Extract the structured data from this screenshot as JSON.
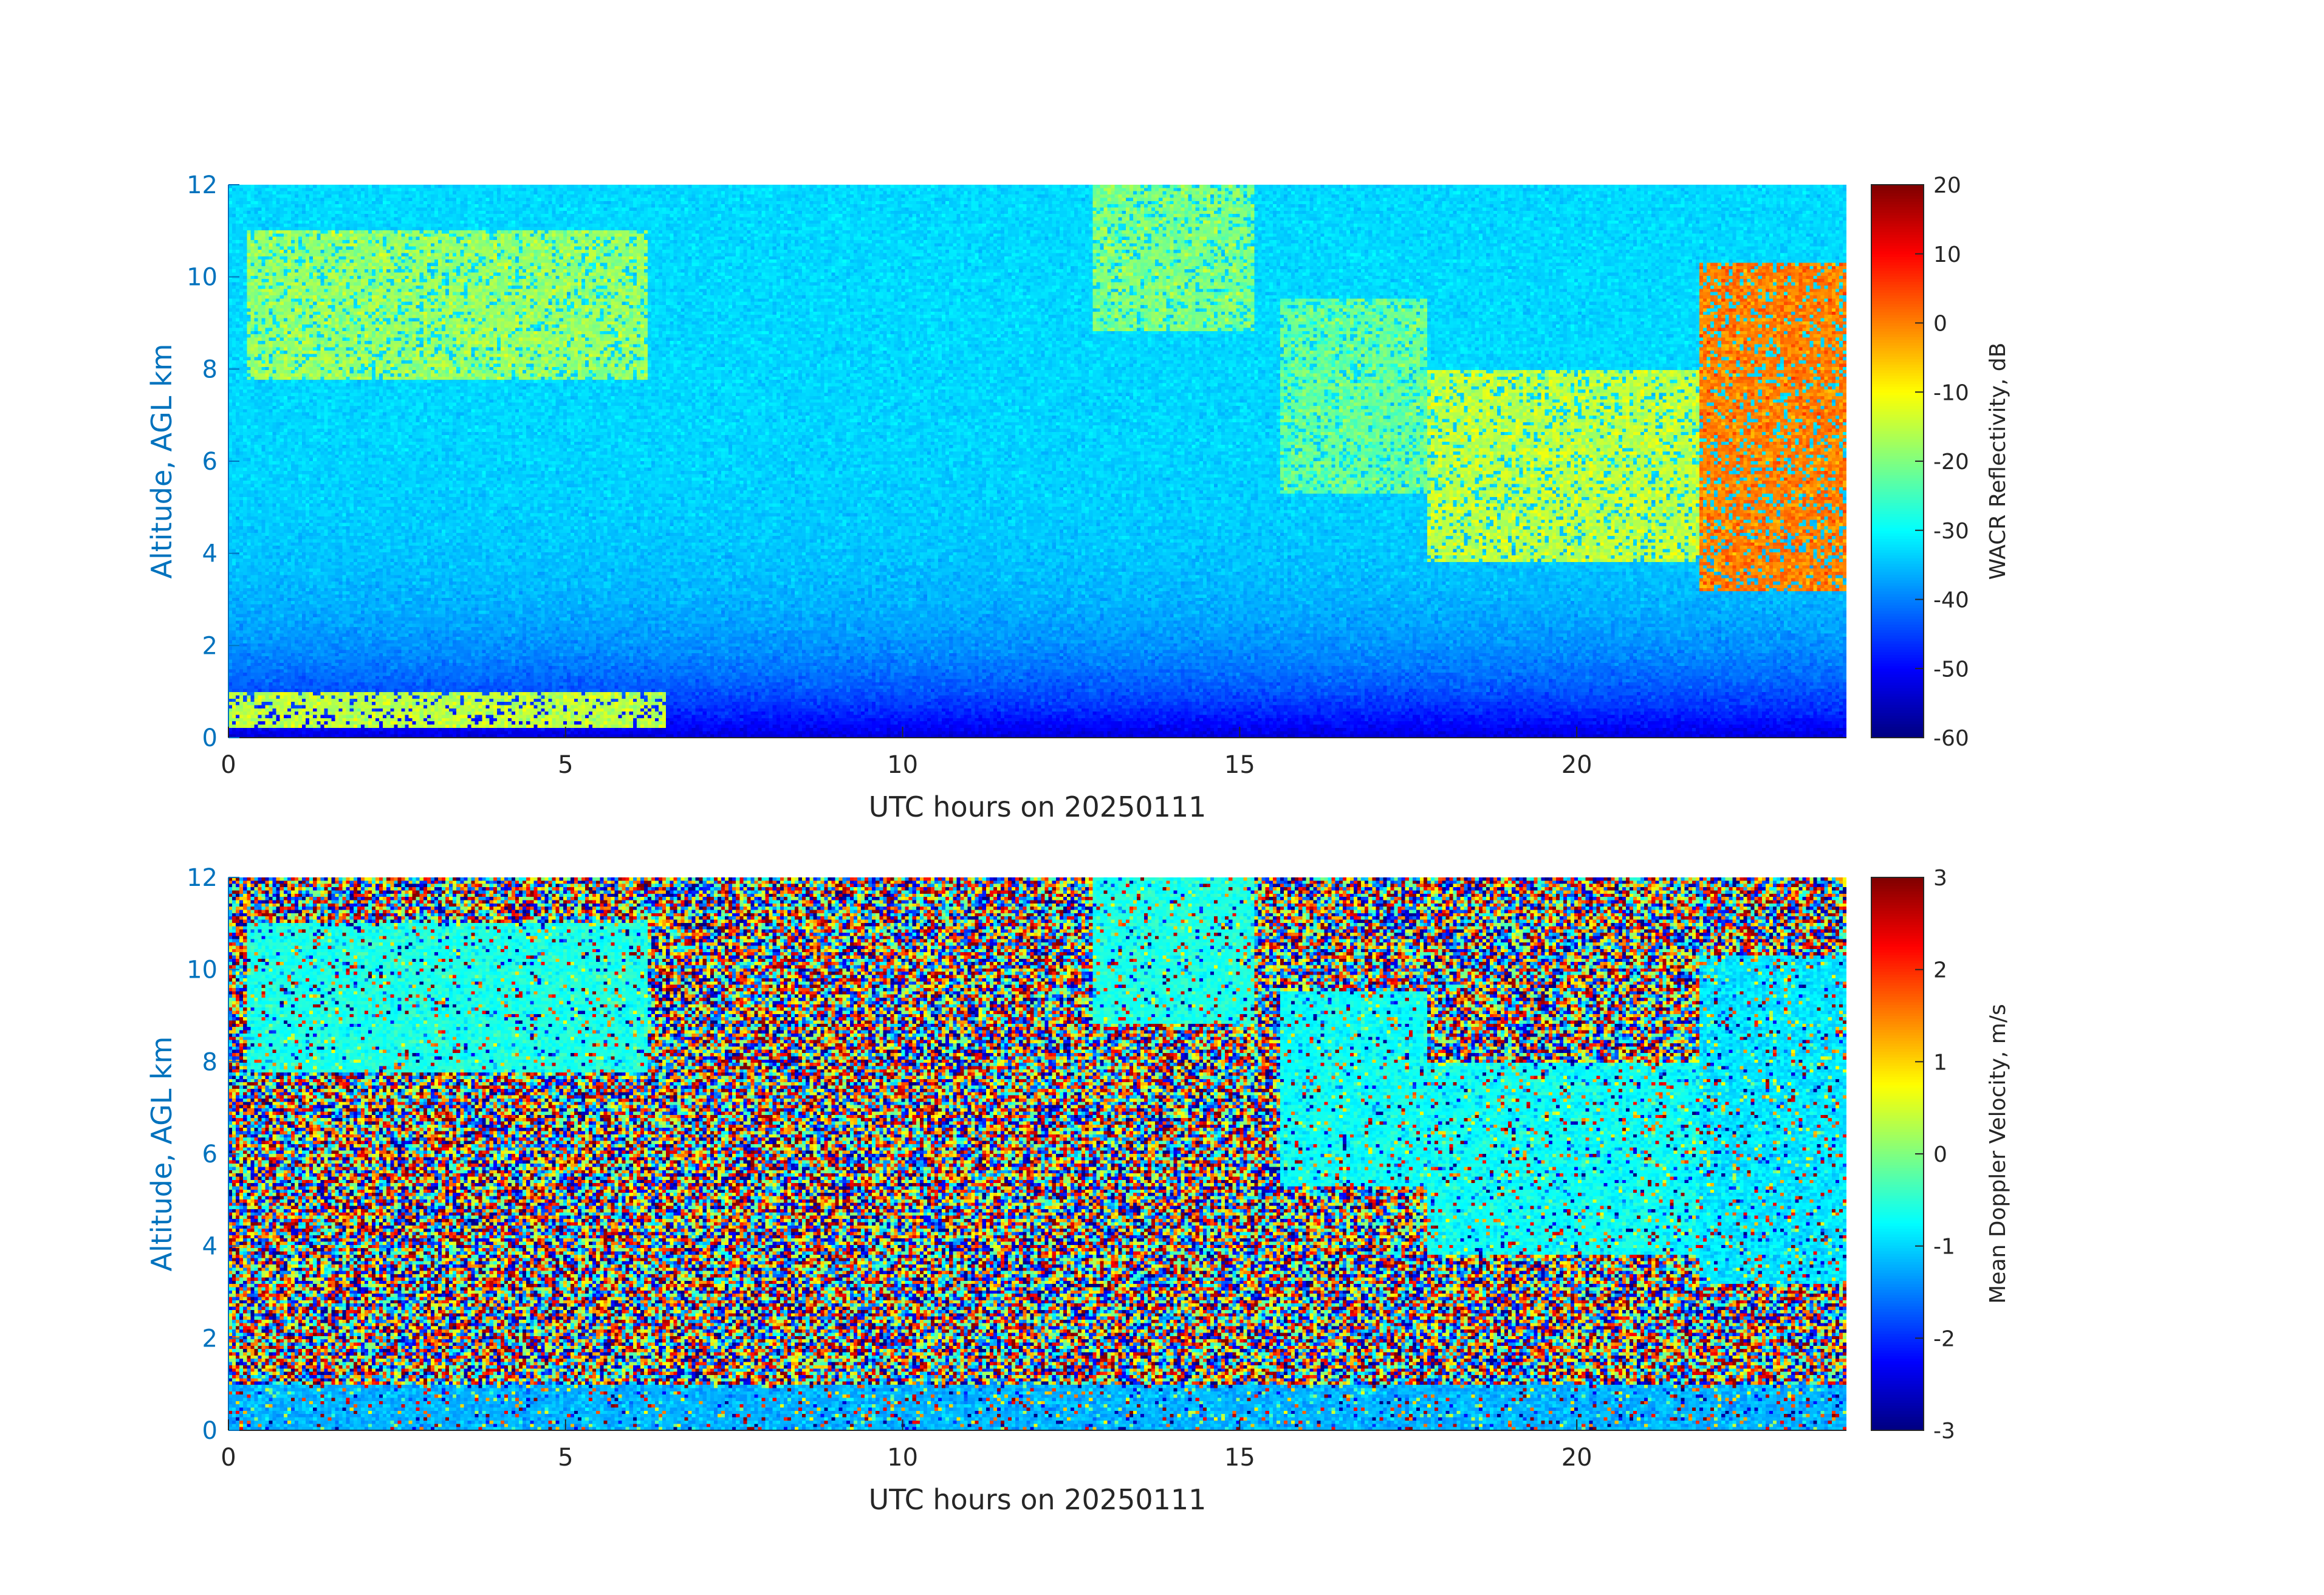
{
  "chart_data": [
    {
      "type": "heatmap",
      "xlabel": "UTC hours on 20250111",
      "ylabel": "Altitude, AGL km",
      "xlim": [
        0,
        24
      ],
      "ylim": [
        0,
        12
      ],
      "xticks": [
        0,
        5,
        10,
        15,
        20
      ],
      "yticks": [
        0,
        2,
        4,
        6,
        8,
        10,
        12
      ],
      "colormap": "jet",
      "colorbar": {
        "label": "WACR Reflectivity, dB",
        "range": [
          -60,
          20
        ],
        "ticks": [
          -60,
          -50,
          -40,
          -30,
          -20,
          -10,
          0,
          10,
          20
        ]
      },
      "features": [
        {
          "x_range": [
            0.3,
            6.2
          ],
          "altitude_km": [
            7.8,
            11.0
          ],
          "value_dB": -18
        },
        {
          "x_range": [
            12.8,
            15.2
          ],
          "altitude_km": [
            8.8,
            12.0
          ],
          "value_dB": -20
        },
        {
          "x_range": [
            15.6,
            17.8
          ],
          "altitude_km": [
            5.3,
            9.5
          ],
          "value_dB": -22
        },
        {
          "x_range": [
            17.8,
            21.8
          ],
          "altitude_km": [
            3.8,
            8.0
          ],
          "value_dB": -15
        },
        {
          "x_range": [
            21.8,
            24.0
          ],
          "altitude_km": [
            3.2,
            10.3
          ],
          "value_dB": 0
        },
        {
          "x_range": [
            0.0,
            6.5
          ],
          "altitude_km": [
            0.2,
            1.0
          ],
          "value_dB": -15
        }
      ]
    },
    {
      "type": "heatmap",
      "xlabel": "UTC hours on 20250111",
      "ylabel": "Altitude, AGL km",
      "xlim": [
        0,
        24
      ],
      "ylim": [
        0,
        12
      ],
      "xticks": [
        0,
        5,
        10,
        15,
        20
      ],
      "yticks": [
        0,
        2,
        4,
        6,
        8,
        10,
        12
      ],
      "colormap": "jet",
      "colorbar": {
        "label": "Mean Doppler Velocity, m/s",
        "range": [
          -3,
          3
        ],
        "ticks": [
          -3,
          -2,
          -1,
          0,
          1,
          2,
          3
        ]
      },
      "features": [
        {
          "x_range": [
            0.3,
            6.2
          ],
          "altitude_km": [
            7.8,
            11.0
          ],
          "value_ms": -0.6
        },
        {
          "x_range": [
            12.8,
            15.2
          ],
          "altitude_km": [
            8.8,
            12.0
          ],
          "value_ms": -0.6
        },
        {
          "x_range": [
            15.6,
            17.8
          ],
          "altitude_km": [
            5.3,
            9.5
          ],
          "value_ms": -0.7
        },
        {
          "x_range": [
            17.8,
            21.8
          ],
          "altitude_km": [
            3.8,
            8.0
          ],
          "value_ms": -0.7
        },
        {
          "x_range": [
            21.8,
            24.0
          ],
          "altitude_km": [
            3.2,
            10.3
          ],
          "value_ms": -0.9
        },
        {
          "x_range": [
            0.0,
            24.0
          ],
          "altitude_km": [
            0.0,
            1.0
          ],
          "value_ms": -1.2
        }
      ]
    }
  ]
}
